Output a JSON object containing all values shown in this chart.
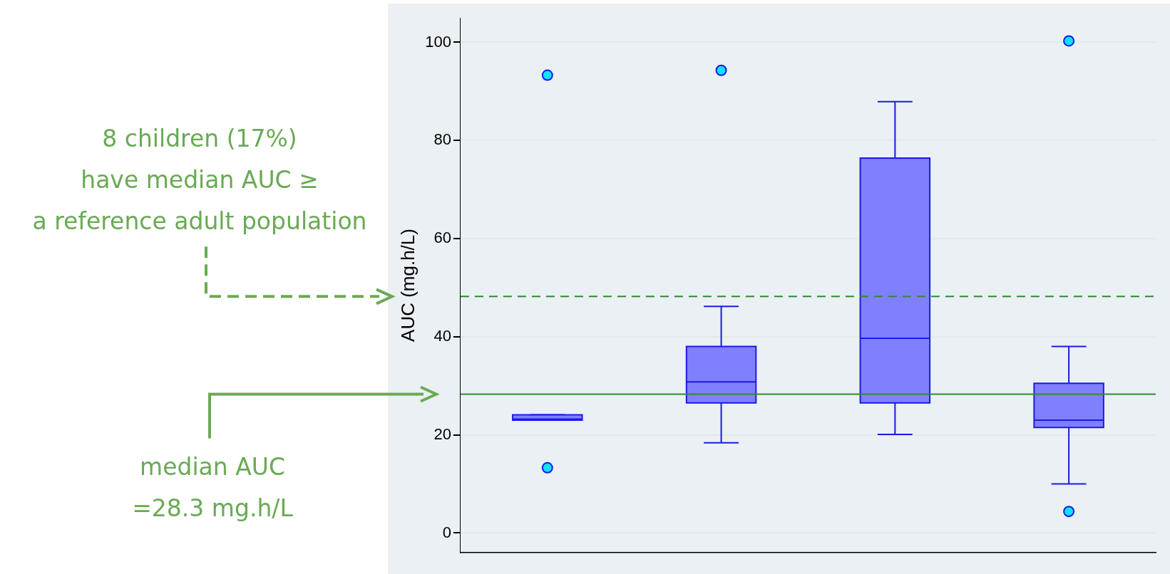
{
  "chart_data": {
    "type": "box",
    "ylabel": "AUC (mg.h/L)",
    "categories": [
      null,
      null,
      null,
      null
    ],
    "boxes": [
      {
        "low": 23.0,
        "q1": 23.0,
        "median": 23.2,
        "q3": 24.1,
        "high": 24.1,
        "outliers": [
          93.3,
          13.3
        ]
      },
      {
        "low": 18.4,
        "q1": 26.5,
        "median": 30.8,
        "q3": 38.0,
        "high": 46.2,
        "outliers": [
          94.3
        ]
      },
      {
        "low": 20.1,
        "q1": 26.5,
        "median": 39.7,
        "q3": 76.4,
        "high": 87.9
      },
      {
        "low": 10.0,
        "q1": 21.5,
        "median": 23.0,
        "q3": 30.5,
        "high": 38.0,
        "outliers": [
          100.3,
          4.4
        ]
      }
    ],
    "color": "#8080ff",
    "ylim": [
      -4,
      105
    ],
    "yticks": [
      0,
      20,
      40,
      60,
      80,
      100
    ],
    "grid": "y",
    "tick_labels": "y",
    "legend": false,
    "annotations": [
      "8 children (17%)\nhave median AUC ≥\na reference adult population",
      "median AUC\n=28.3 mg.h/L"
    ],
    "ref_lines": [
      {
        "axis": "y",
        "value": 48.2,
        "color": "#2e8b2e",
        "line_style": "dashed"
      },
      {
        "axis": "y",
        "value": 28.3,
        "color": "#2e8b2e",
        "line_style": "solid"
      }
    ]
  }
}
